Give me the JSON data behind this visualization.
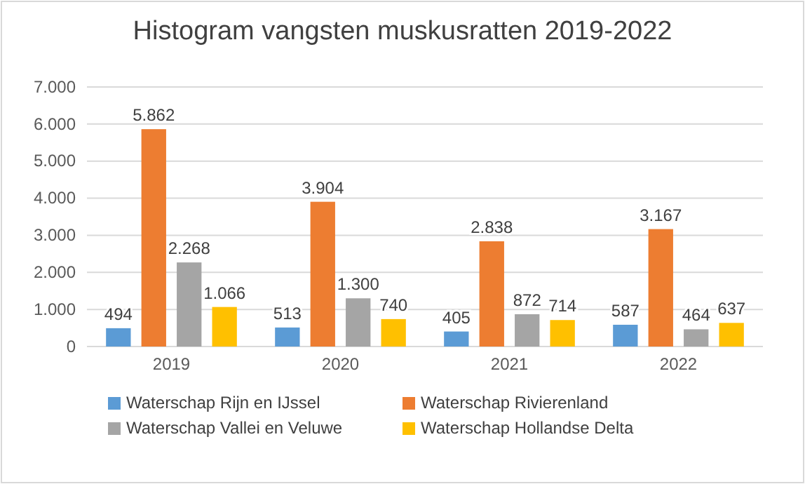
{
  "chart_data": {
    "type": "bar",
    "title": "Histogram vangsten muskusratten 2019-2022",
    "categories": [
      "2019",
      "2020",
      "2021",
      "2022"
    ],
    "series": [
      {
        "name": "Waterschap Rijn en IJssel",
        "color": "#5b9bd5",
        "values": [
          494,
          513,
          405,
          587
        ],
        "value_labels": [
          "494",
          "513",
          "405",
          "587"
        ]
      },
      {
        "name": "Waterschap Rivierenland",
        "color": "#ed7d31",
        "values": [
          5862,
          3904,
          2838,
          3167
        ],
        "value_labels": [
          "5.862",
          "3.904",
          "2.838",
          "3.167"
        ]
      },
      {
        "name": "Waterschap Vallei en Veluwe",
        "color": "#a5a5a5",
        "values": [
          2268,
          1300,
          872,
          464
        ],
        "value_labels": [
          "2.268",
          "1.300",
          "872",
          "464"
        ]
      },
      {
        "name": "Waterschap Hollandse Delta",
        "color": "#ffc000",
        "values": [
          1066,
          740,
          714,
          637
        ],
        "value_labels": [
          "1.066",
          "740",
          "714",
          "637"
        ]
      }
    ],
    "ylim": [
      0,
      7000
    ],
    "yticks": [
      {
        "value": 0,
        "label": "0"
      },
      {
        "value": 1000,
        "label": "1.000"
      },
      {
        "value": 2000,
        "label": "2.000"
      },
      {
        "value": 3000,
        "label": "3.000"
      },
      {
        "value": 4000,
        "label": "4.000"
      },
      {
        "value": 5000,
        "label": "5.000"
      },
      {
        "value": 6000,
        "label": "6.000"
      },
      {
        "value": 7000,
        "label": "7.000"
      }
    ],
    "grid": "y",
    "legend": "bottom"
  }
}
